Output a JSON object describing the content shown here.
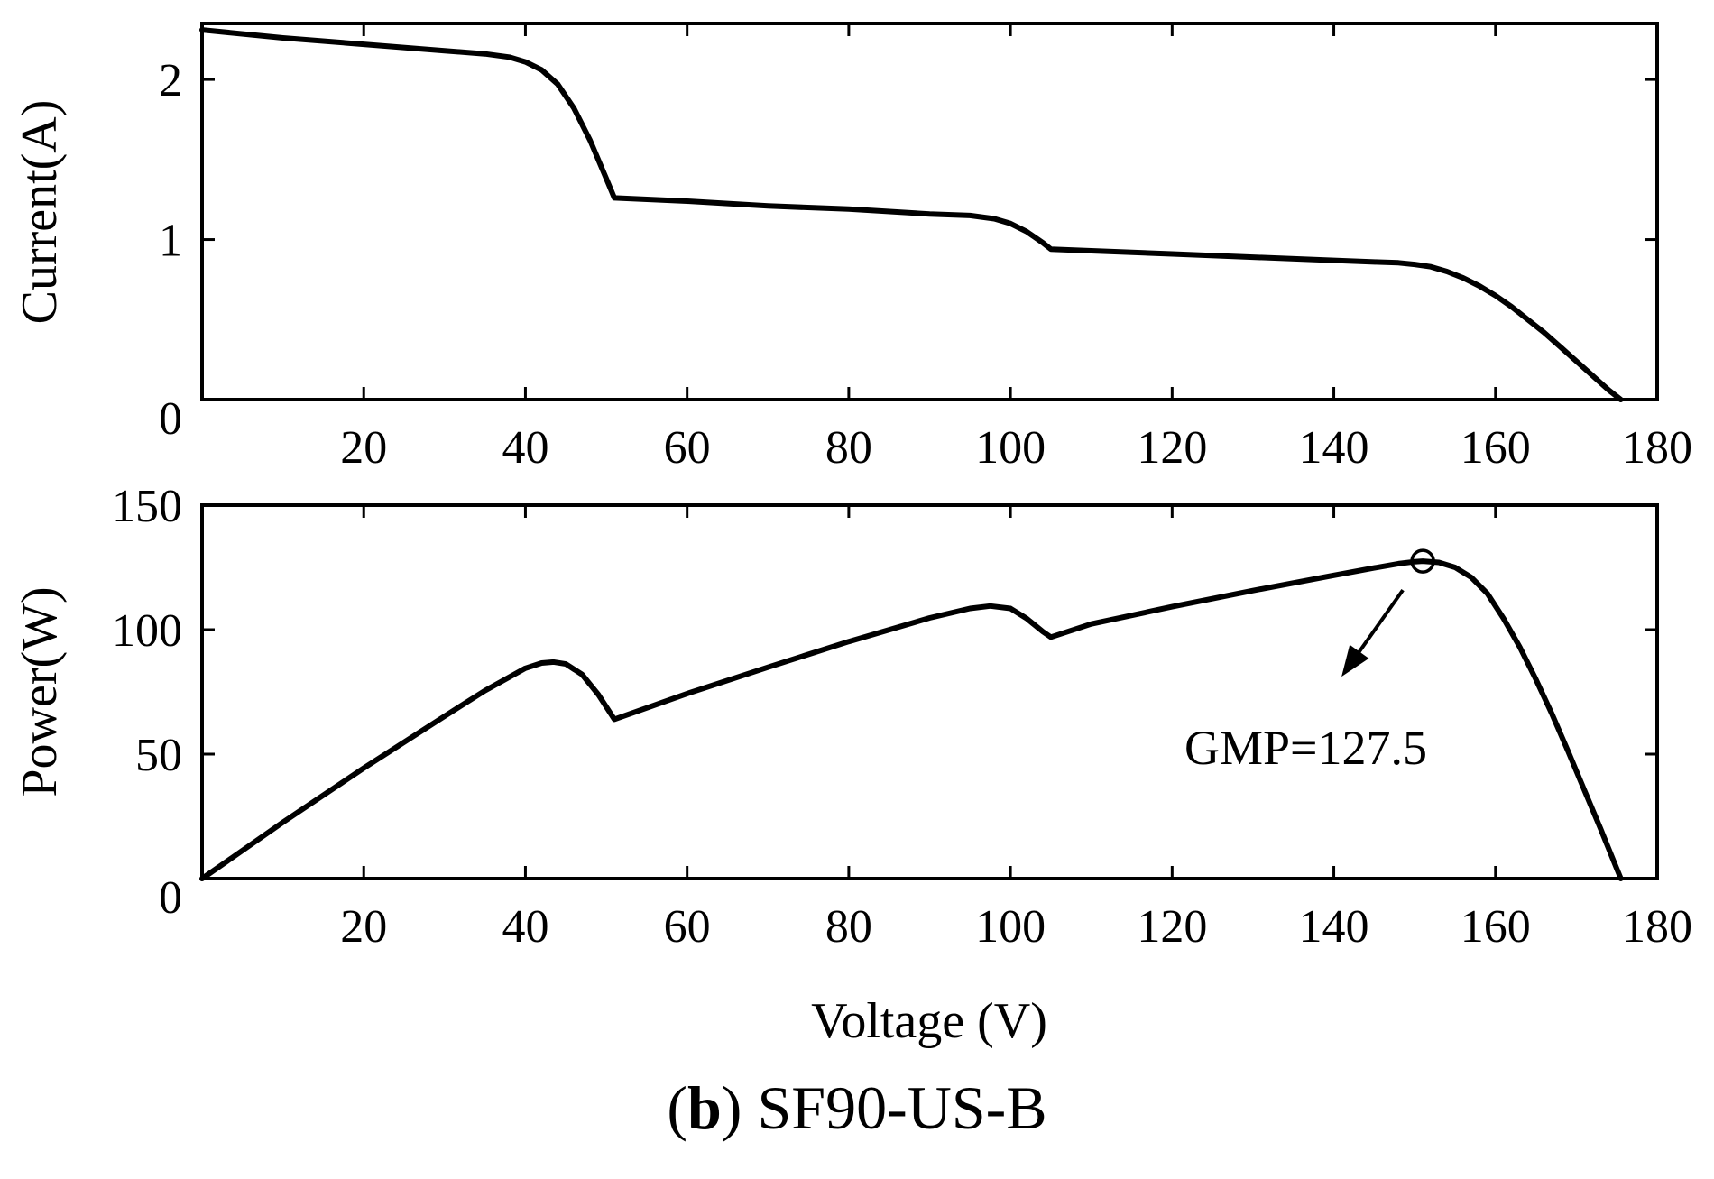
{
  "caption": {
    "letter": "b",
    "text": "SF90-US-B"
  },
  "chart_data": [
    {
      "type": "line",
      "id": "current",
      "xlabel": "",
      "ylabel": "Current(A)",
      "xlim": [
        0,
        180
      ],
      "ylim": [
        0,
        2.35
      ],
      "xticks": [
        20,
        40,
        60,
        80,
        100,
        120,
        140,
        160,
        180
      ],
      "yticks": [
        0,
        1,
        2
      ],
      "grid": false,
      "series": [
        {
          "x": [
            0,
            10,
            20,
            30,
            35,
            38,
            40,
            42,
            44,
            46,
            48,
            50,
            51,
            60,
            70,
            80,
            90,
            95,
            98,
            100,
            102,
            104,
            105,
            110,
            120,
            130,
            140,
            145,
            148,
            150,
            152,
            154,
            156,
            158,
            160,
            162,
            164,
            166,
            168,
            170,
            172,
            174,
            175.5
          ],
          "y": [
            2.31,
            2.26,
            2.22,
            2.18,
            2.16,
            2.14,
            2.11,
            2.06,
            1.97,
            1.82,
            1.62,
            1.38,
            1.26,
            1.24,
            1.21,
            1.19,
            1.16,
            1.15,
            1.13,
            1.1,
            1.05,
            0.98,
            0.94,
            0.93,
            0.91,
            0.89,
            0.87,
            0.86,
            0.855,
            0.845,
            0.83,
            0.8,
            0.76,
            0.71,
            0.65,
            0.58,
            0.5,
            0.42,
            0.33,
            0.24,
            0.15,
            0.06,
            0.0
          ]
        }
      ]
    },
    {
      "type": "line",
      "id": "power",
      "xlabel": "Voltage (V)",
      "ylabel": "Power(W)",
      "xlim": [
        0,
        180
      ],
      "ylim": [
        0,
        150
      ],
      "xticks": [
        20,
        40,
        60,
        80,
        100,
        120,
        140,
        160,
        180
      ],
      "yticks": [
        0,
        50,
        100,
        150
      ],
      "grid": false,
      "series": [
        {
          "x": [
            0,
            10,
            20,
            30,
            35,
            40,
            42,
            43.5,
            45,
            47,
            49,
            51,
            60,
            70,
            80,
            90,
            95,
            97.5,
            100,
            102,
            104,
            105,
            110,
            120,
            130,
            140,
            145,
            148,
            150,
            151,
            153,
            155,
            157,
            159,
            161,
            163,
            165,
            167,
            169,
            171,
            173,
            175,
            175.5
          ],
          "y": [
            0,
            22.6,
            44.4,
            65.2,
            75.5,
            84.5,
            86.6,
            87,
            86.2,
            82,
            74,
            64,
            74.3,
            84.9,
            95.2,
            104.7,
            108.5,
            109.5,
            108.5,
            104.5,
            99.2,
            97,
            102.3,
            109.2,
            115.7,
            121.8,
            124.8,
            126.5,
            127.3,
            127.5,
            127,
            125,
            121,
            114.5,
            104.5,
            93,
            80,
            66,
            51,
            35.5,
            20,
            4,
            0
          ]
        }
      ],
      "annotation": {
        "text": "GMP=127.5",
        "x": 151,
        "y": 127.5
      }
    }
  ]
}
